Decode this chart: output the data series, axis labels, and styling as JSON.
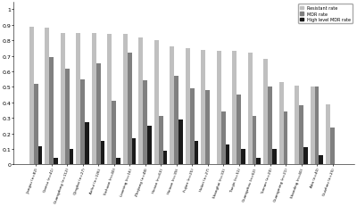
{
  "categories": [
    "Jiangsu (n=82)",
    "Gansu (n=41)",
    "Guangdong (n=112)",
    "Qinghai (n=27)",
    "Anhui (n=126)",
    "Sichuan (n=40)",
    "Liaoning (n=16)",
    "Zhejiang (n=48)",
    "Henan (n=63)",
    "Hainan (n=39)",
    "Fujian (n=25)",
    "Hebei (n=27)",
    "Shanghai (n=33)",
    "Tianjin (n=51)",
    "Guangzhou (n=62)",
    "Yunnan (n=20)",
    "Guangming (n=21)",
    "Shanding (n=40)",
    "Aba (n=40)",
    "Guizhou (n=25)"
  ],
  "resistant_rate": [
    0.89,
    0.88,
    0.85,
    0.85,
    0.85,
    0.84,
    0.84,
    0.82,
    0.8,
    0.76,
    0.75,
    0.74,
    0.73,
    0.73,
    0.72,
    0.68,
    0.53,
    0.51,
    0.5,
    0.39
  ],
  "mdr_rate": [
    0.52,
    0.69,
    0.62,
    0.55,
    0.65,
    0.41,
    0.72,
    0.54,
    0.31,
    0.57,
    0.49,
    0.48,
    0.34,
    0.45,
    0.31,
    0.5,
    0.34,
    0.38,
    0.5,
    0.24
  ],
  "high_mdr_rate": [
    0.12,
    0.04,
    0.1,
    0.27,
    0.15,
    0.04,
    0.17,
    0.25,
    0.09,
    0.29,
    0.15,
    0.0,
    0.13,
    0.1,
    0.04,
    0.1,
    0.0,
    0.11,
    0.06,
    0.0
  ],
  "bar_colors": [
    "#c0c0c0",
    "#808080",
    "#1a1a1a"
  ],
  "legend_labels": [
    "Resistant rate",
    "MDR rate",
    "High level MDR rate"
  ],
  "ylim": [
    0,
    1.05
  ],
  "yticks": [
    0,
    0.1,
    0.2,
    0.3,
    0.4,
    0.5,
    0.6,
    0.7,
    0.8,
    0.9,
    1
  ],
  "ytick_labels": [
    "0",
    "0.1",
    "0.2",
    "0.3",
    "0.4",
    "0.5",
    "0.6",
    "0.7",
    "0.8",
    "0.9",
    "1"
  ],
  "bar_width": 0.28
}
